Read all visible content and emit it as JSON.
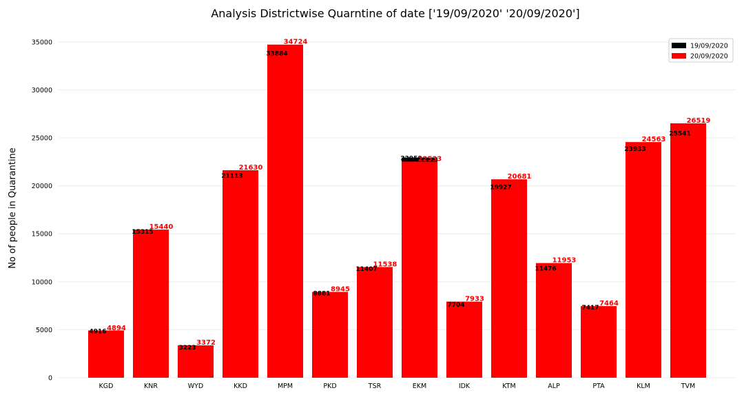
{
  "chart_data": {
    "type": "bar",
    "title": "Analysis Districtwise Quarntine of date ['19/09/2020' '20/09/2020']",
    "xlabel": "",
    "ylabel": "No of people in Quarantine",
    "categories": [
      "KGD",
      "KNR",
      "WYD",
      "KKD",
      "MPM",
      "PKD",
      "TSR",
      "EKM",
      "IDK",
      "KTM",
      "ALP",
      "PTA",
      "KLM",
      "TVM"
    ],
    "series": [
      {
        "name": "19/09/2020",
        "color": "#000000",
        "values": [
          4916,
          15315,
          3223,
          21113,
          33884,
          8881,
          11407,
          22958,
          7704,
          19927,
          11476,
          7417,
          23933,
          25541
        ]
      },
      {
        "name": "20/09/2020",
        "color": "#ff0000",
        "values": [
          4894,
          15440,
          3372,
          21630,
          34724,
          8945,
          11538,
          22533,
          7933,
          20681,
          11953,
          7464,
          24563,
          26519
        ]
      }
    ],
    "ylim": [
      0,
      36500
    ],
    "yticks": [
      0,
      5000,
      10000,
      15000,
      20000,
      25000,
      30000,
      35000
    ],
    "grid": true,
    "legend_position": "top-right",
    "overlay": true
  }
}
